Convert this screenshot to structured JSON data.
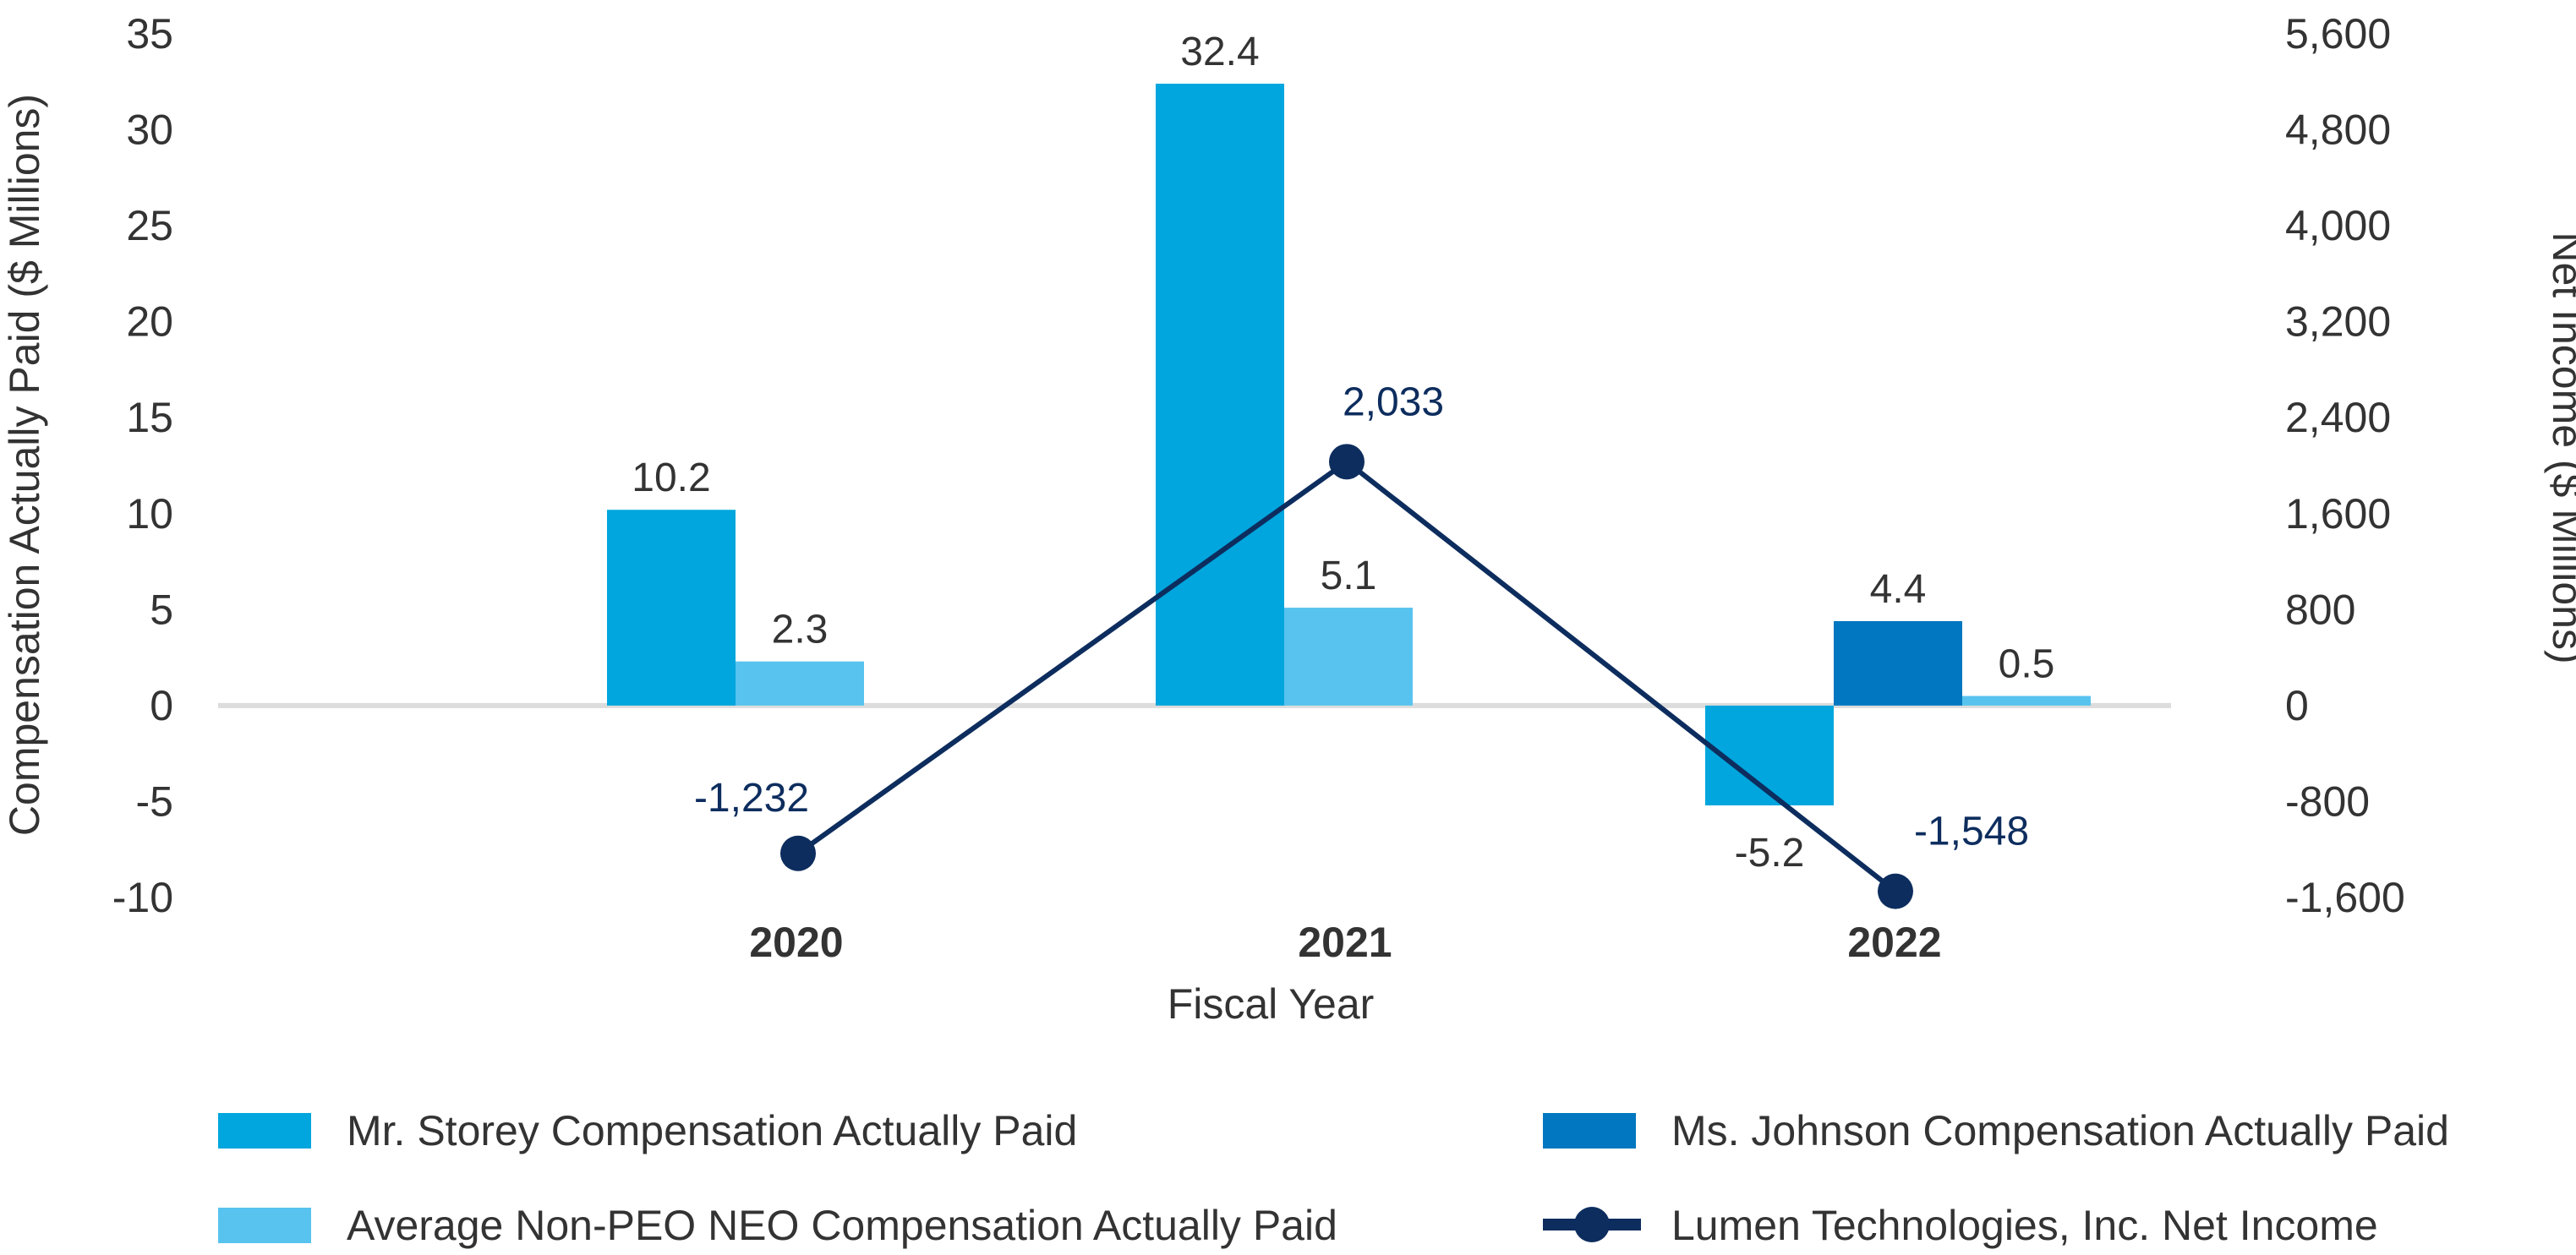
{
  "chart_data": {
    "type": "bar",
    "xlabel": "Fiscal Year",
    "ylabel_left": "Compensation Actually Paid ($ Millions)",
    "ylabel_right": "Net Income ($ Millions)",
    "categories": [
      "2020",
      "2021",
      "2022"
    ],
    "ylim_left": [
      -10,
      35
    ],
    "yticks_left": [
      "35",
      "30",
      "25",
      "20",
      "15",
      "10",
      "5",
      "0",
      "-5",
      "-10"
    ],
    "ylim_right": [
      -1600,
      5600
    ],
    "yticks_right": [
      "5,600",
      "4,800",
      "4,000",
      "3,200",
      "2,400",
      "1,600",
      "800",
      "0",
      "-800",
      "-1,600"
    ],
    "series": [
      {
        "name": "Mr. Storey Compensation Actually Paid",
        "type": "bar",
        "axis": "left",
        "color": "#00a6dd",
        "values": [
          10.2,
          32.4,
          -5.2
        ],
        "labels": [
          "10.2",
          "32.4",
          "-5.2"
        ]
      },
      {
        "name": "Ms. Johnson Compensation Actually Paid",
        "type": "bar",
        "axis": "left",
        "color": "#0077c0",
        "values": [
          null,
          null,
          4.4
        ],
        "labels": [
          "",
          "",
          "4.4"
        ]
      },
      {
        "name": "Average Non-PEO NEO Compensation Actually Paid",
        "type": "bar",
        "axis": "left",
        "color": "#58c3ee",
        "values": [
          2.3,
          5.1,
          0.5
        ],
        "labels": [
          "2.3",
          "5.1",
          "0.5"
        ]
      },
      {
        "name": "Lumen Technologies, Inc. Net Income",
        "type": "line",
        "axis": "right",
        "color": "#0d2d5e",
        "values": [
          -1232,
          2033,
          -1548
        ],
        "labels": [
          "-1,232",
          "2,033",
          "-1,548"
        ]
      }
    ],
    "legend": [
      {
        "name": "Mr. Storey Compensation Actually Paid",
        "color": "#00a6dd",
        "marker": "box"
      },
      {
        "name": "Ms. Johnson Compensation Actually Paid",
        "color": "#0077c0",
        "marker": "box"
      },
      {
        "name": "Average Non-PEO NEO Compensation Actually Paid",
        "color": "#58c3ee",
        "marker": "box"
      },
      {
        "name": "Lumen Technologies, Inc. Net Income",
        "color": "#0d2d5e",
        "marker": "line-dot"
      }
    ]
  }
}
